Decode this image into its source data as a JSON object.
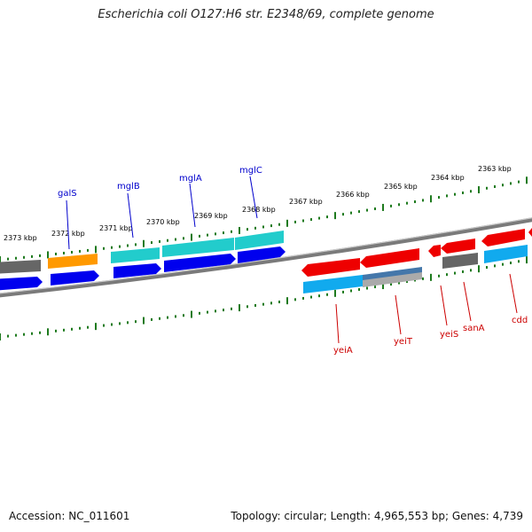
{
  "title": "Escherichia coli O127:H6 str. E2348/69, complete genome",
  "footer": {
    "accession": "Accession: NC_011601",
    "summary": "Topology: circular; Length: 4,965,553 bp; Genes: 4,739"
  },
  "scale_labels": [
    "2373 kbp",
    "2372 kbp",
    "2371 kbp",
    "2370 kbp",
    "2369 kbp",
    "2368 kbp",
    "2367 kbp",
    "2366 kbp",
    "2365 kbp",
    "2364 kbp",
    "2363 kbp"
  ],
  "gene_labels_upper": [
    "galS",
    "mglB",
    "mglA",
    "mglC"
  ],
  "gene_labels_lower": [
    "yeiA",
    "yeiT",
    "yeiS",
    "sanA",
    "cdd"
  ],
  "colors": {
    "backbone": "#7a7a7a",
    "tick": "#1e7a1e",
    "upper_label": "#0000cc",
    "lower_label": "#cc0000",
    "cds_blue": "#0000ee",
    "cds_red": "#ee0000",
    "gene_cyan": "#22cccc",
    "gene_orange": "#ff9900",
    "gene_gray": "#666666",
    "gene_sky": "#11aaee"
  }
}
